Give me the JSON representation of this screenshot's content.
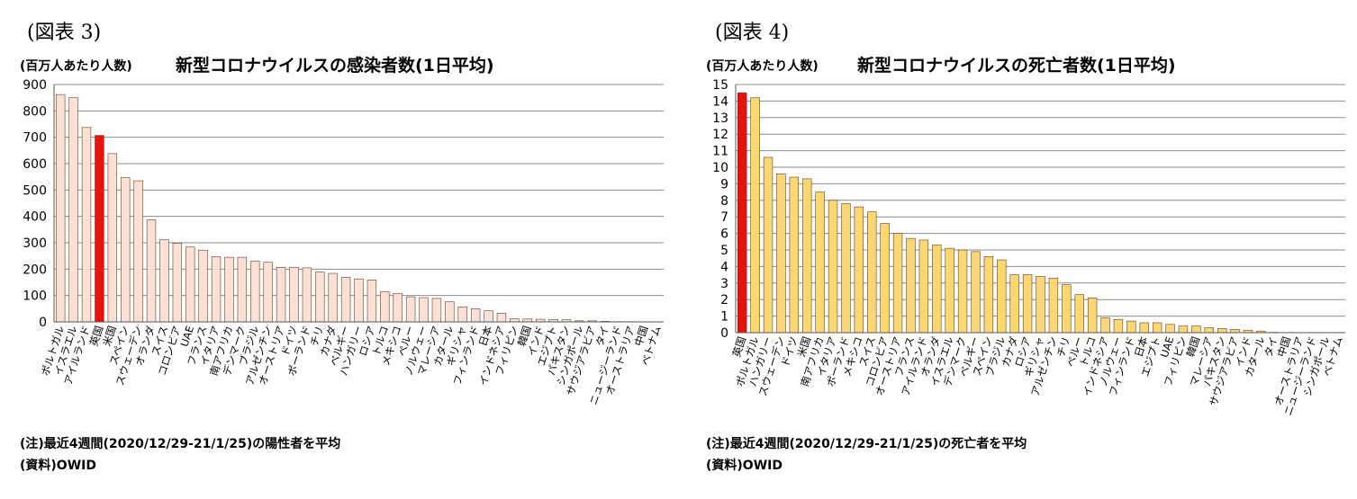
{
  "left": {
    "fig_label": "(図表 3)",
    "unit_label": "(百万人あたり人数)",
    "note": "(注)最近4週間(2020/12/29-21/1/25)の陽性者を平均",
    "source": "(資料)OWID"
  },
  "right": {
    "fig_label": "(図表 4)",
    "unit_label": "(百万人あたり人数)",
    "note": "(注)最近4週間(2020/12/29-21/1/25)の死亡者を平均",
    "source": "(資料)OWID"
  },
  "chart_data": [
    {
      "type": "bar",
      "title": "新型コロナウイルスの感染者数(1日平均)",
      "ylabel": "",
      "xlabel": "",
      "ylim": [
        0,
        900
      ],
      "yticks": [
        0,
        100,
        200,
        300,
        400,
        500,
        600,
        700,
        800,
        900
      ],
      "grid": true,
      "bar_color": "#fbe0d3",
      "highlight_color": "#e8120c",
      "highlight_category": "英国",
      "categories": [
        "ポルトガル",
        "イスラエル",
        "アイルランド",
        "英国",
        "米国",
        "スペイン",
        "スウェーデン",
        "オランダ",
        "スイス",
        "コロンビア",
        "UAE",
        "フランス",
        "イタリア",
        "南アフリカ",
        "デンマーク",
        "ブラジル",
        "アルゼンチン",
        "オーストリア",
        "ドイツ",
        "ポーランド",
        "チリ",
        "カナダ",
        "ベルギー",
        "ハンガリー",
        "ロシア",
        "トルコ",
        "メキシコ",
        "ペルー",
        "ノルウェー",
        "マレーシア",
        "カタール",
        "ギリシャ",
        "フィンランド",
        "日本",
        "インドネシア",
        "フィリピン",
        "韓国",
        "インド",
        "エジプト",
        "パキスタン",
        "シンガポール",
        "サウジアラビア",
        "タイ",
        "ニュージーランド",
        "オーストラリア",
        "中国",
        "ベトナム"
      ],
      "values": [
        862,
        850,
        737,
        707,
        638,
        547,
        535,
        387,
        312,
        298,
        284,
        272,
        247,
        245,
        245,
        231,
        226,
        207,
        207,
        205,
        189,
        184,
        169,
        163,
        159,
        115,
        107,
        95,
        92,
        89,
        76,
        57,
        50,
        42,
        33,
        12,
        11,
        10,
        9,
        8,
        4,
        4,
        2,
        1,
        1,
        0.5,
        0.5
      ]
    },
    {
      "type": "bar",
      "title": "新型コロナウイルスの死亡者数(1日平均)",
      "ylabel": "",
      "xlabel": "",
      "ylim": [
        0,
        15
      ],
      "yticks": [
        0,
        1,
        2,
        3,
        4,
        5,
        6,
        7,
        8,
        9,
        10,
        11,
        12,
        13,
        14,
        15
      ],
      "grid": true,
      "bar_color": "#fbd774",
      "highlight_color": "#e8120c",
      "highlight_category": "英国",
      "categories": [
        "英国",
        "ポルトガル",
        "ハンガリー",
        "スウェーデン",
        "ドイツ",
        "米国",
        "南アフリカ",
        "イタリア",
        "ポーランド",
        "メキシコ",
        "スイス",
        "コロンビア",
        "オーストリア",
        "フランス",
        "アイルランド",
        "オランダ",
        "イスラエル",
        "デンマーク",
        "ベルギー",
        "スペイン",
        "ブラジル",
        "カナダ",
        "ロシア",
        "ギリシャ",
        "アルゼンチン",
        "チリ",
        "ペルー",
        "トルコ",
        "インドネシア",
        "ノルウェー",
        "フィンランド",
        "日本",
        "エジプト",
        "UAE",
        "フィリピン",
        "韓国",
        "マレーシア",
        "パキスタン",
        "サウジアラビア",
        "インド",
        "カタール",
        "タイ",
        "中国",
        "オーストラリア",
        "ニュージーランド",
        "シンガポール",
        "ベトナム"
      ],
      "values": [
        14.5,
        14.2,
        10.6,
        9.6,
        9.4,
        9.3,
        8.5,
        8.0,
        7.8,
        7.6,
        7.3,
        6.6,
        6.0,
        5.7,
        5.6,
        5.3,
        5.1,
        5.0,
        4.9,
        4.6,
        4.4,
        3.5,
        3.5,
        3.4,
        3.3,
        2.9,
        2.3,
        2.1,
        0.9,
        0.8,
        0.7,
        0.6,
        0.6,
        0.5,
        0.4,
        0.4,
        0.3,
        0.25,
        0.2,
        0.15,
        0.1,
        0.02,
        0.01,
        0.01,
        0.0,
        0.0,
        0.0
      ]
    }
  ]
}
